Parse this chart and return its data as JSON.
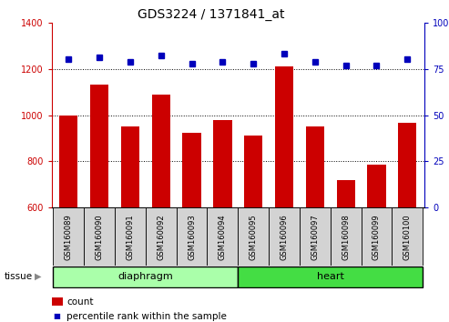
{
  "title": "GDS3224 / 1371841_at",
  "samples": [
    "GSM160089",
    "GSM160090",
    "GSM160091",
    "GSM160092",
    "GSM160093",
    "GSM160094",
    "GSM160095",
    "GSM160096",
    "GSM160097",
    "GSM160098",
    "GSM160099",
    "GSM160100"
  ],
  "counts": [
    1000,
    1130,
    950,
    1090,
    925,
    980,
    910,
    1210,
    950,
    720,
    785,
    965
  ],
  "percentiles": [
    80,
    81,
    79,
    82,
    78,
    79,
    78,
    83,
    79,
    77,
    77,
    80
  ],
  "ylim_left": [
    600,
    1400
  ],
  "ylim_right": [
    0,
    100
  ],
  "yticks_left": [
    600,
    800,
    1000,
    1200,
    1400
  ],
  "yticks_right": [
    0,
    25,
    50,
    75,
    100
  ],
  "groups": [
    {
      "label": "diaphragm",
      "start": 0,
      "end": 6,
      "color": "#AAFFAA"
    },
    {
      "label": "heart",
      "start": 6,
      "end": 12,
      "color": "#44DD44"
    }
  ],
  "bar_color": "#CC0000",
  "dot_color": "#0000BB",
  "bar_width": 0.6,
  "grid_color": "#000000",
  "background_color": "#ffffff",
  "tick_color_left": "#CC0000",
  "tick_color_right": "#0000BB",
  "legend_count_color": "#CC0000",
  "legend_pct_color": "#0000BB",
  "box_color": "#D3D3D3",
  "title_fontsize": 10,
  "label_fontsize": 6,
  "axis_fontsize": 7,
  "tissue_fontsize": 8
}
